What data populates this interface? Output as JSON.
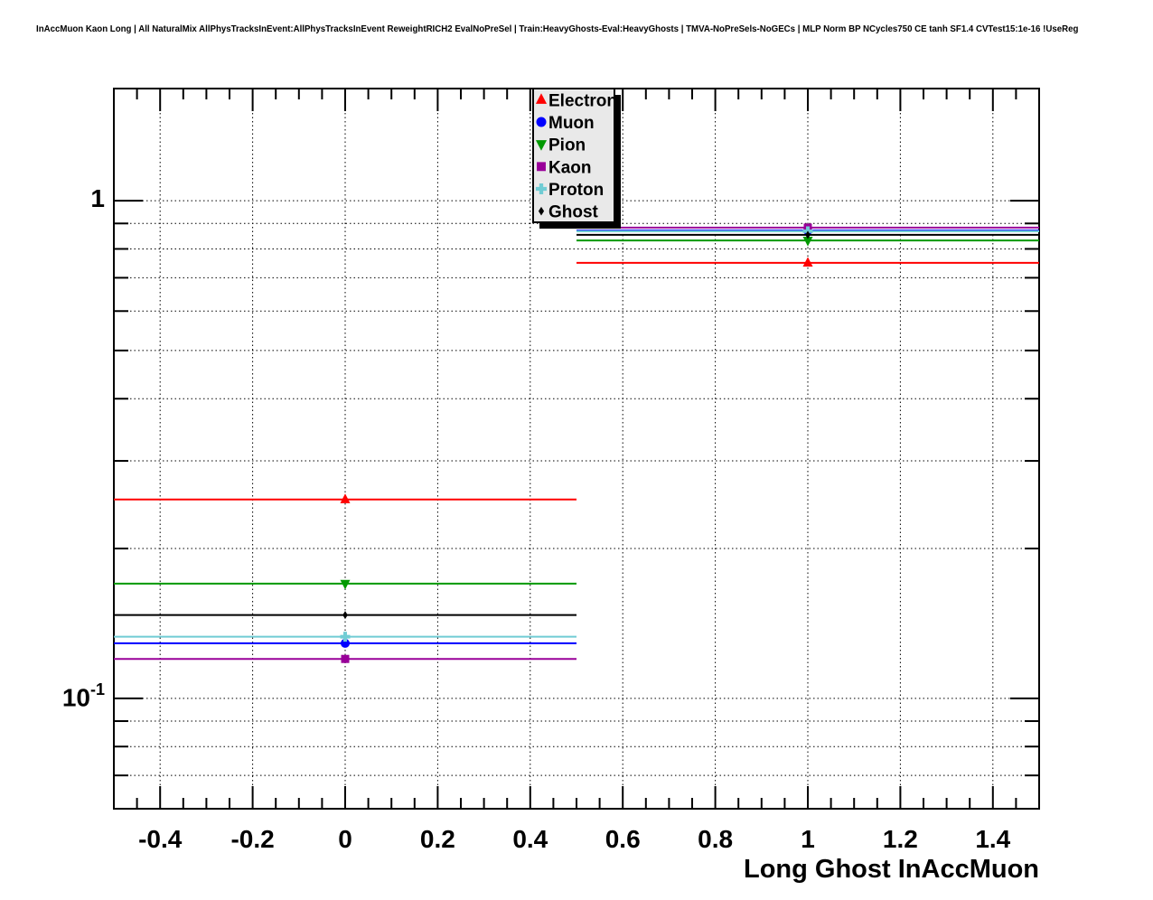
{
  "title": {
    "text": "InAccMuon Kaon Long | All NaturalMix AllPhysTracksInEvent:AllPhysTracksInEvent ReweightRICH2 EvalNoPreSel | Train:HeavyGhosts-Eval:HeavyGhosts | TMVA-NoPreSels-NoGECs | MLP Norm BP NCycles750 CE tanh SF1.4 CVTest15:1e-16 !UseReg"
  },
  "chart_data": {
    "type": "line",
    "subtype": "step-histogram",
    "title": "",
    "xlabel": "Long Ghost InAccMuon",
    "ylabel": "",
    "yscale": "log",
    "grid": true,
    "xlim": [
      -0.5,
      1.5
    ],
    "ylim": [
      0.06,
      1.68
    ],
    "bin_edges": [
      -0.5,
      0.5,
      1.5
    ],
    "bin_centers": [
      0,
      1
    ],
    "x_ticks": [
      {
        "value": -0.4,
        "label": "-0.4"
      },
      {
        "value": -0.2,
        "label": "-0.2"
      },
      {
        "value": 0,
        "label": "0"
      },
      {
        "value": 0.2,
        "label": "0.2"
      },
      {
        "value": 0.4,
        "label": "0.4"
      },
      {
        "value": 0.6,
        "label": "0.6"
      },
      {
        "value": 0.8,
        "label": "0.8"
      },
      {
        "value": 1,
        "label": "1"
      },
      {
        "value": 1.2,
        "label": "1.2"
      },
      {
        "value": 1.4,
        "label": "1.4"
      }
    ],
    "x_minor_tick_step": 0.05,
    "y_ticks": [
      {
        "value": 1,
        "base": "1",
        "exp": ""
      },
      {
        "value": 0.1,
        "base": "10",
        "exp": "-1"
      }
    ],
    "y_minor_ticks": [
      0.9,
      0.8,
      0.7,
      0.6,
      0.5,
      0.4,
      0.3,
      0.2,
      0.09,
      0.08,
      0.07,
      0.06
    ],
    "y_grid_values": [
      1,
      0.9,
      0.8,
      0.7,
      0.6,
      0.5,
      0.4,
      0.3,
      0.2,
      0.1,
      0.09,
      0.08,
      0.07
    ],
    "legend_position": "top-center",
    "series": [
      {
        "name": "Electron",
        "color": "#ff0000",
        "marker": "triangle-up",
        "marker_size": 5.5,
        "values": [
          0.251,
          0.75
        ]
      },
      {
        "name": "Muon",
        "color": "#0000ff",
        "marker": "circle",
        "marker_size": 5.0,
        "values": [
          0.129,
          0.871
        ]
      },
      {
        "name": "Pion",
        "color": "#009900",
        "marker": "triangle-down",
        "marker_size": 5.5,
        "values": [
          0.17,
          0.832
        ]
      },
      {
        "name": "Kaon",
        "color": "#990099",
        "marker": "square",
        "marker_size": 4.5,
        "values": [
          0.12,
          0.883
        ]
      },
      {
        "name": "Proton",
        "color": "#70ccd4",
        "marker": "cross",
        "marker_size": 5.5,
        "values": [
          0.133,
          0.868
        ]
      },
      {
        "name": "Ghost",
        "color": "#000000",
        "marker": "diamond",
        "marker_size": 3.5,
        "values": [
          0.147,
          0.854
        ]
      }
    ]
  }
}
